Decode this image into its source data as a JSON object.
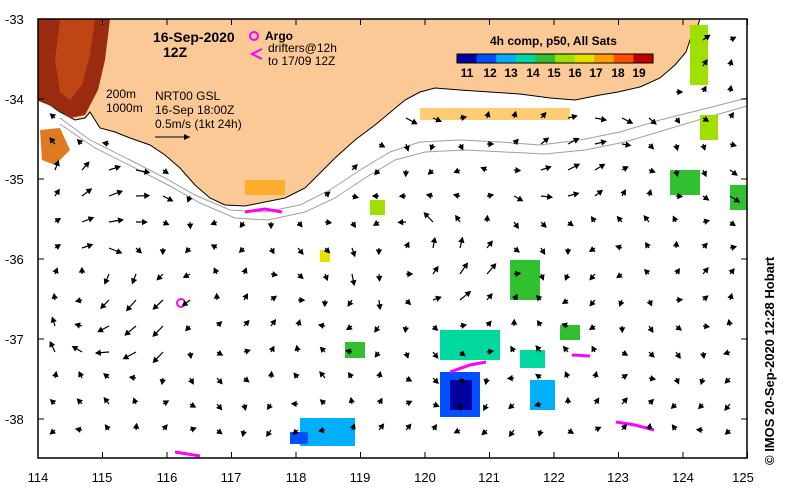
{
  "header": {
    "date": "16-Sep-2020",
    "time": "12Z"
  },
  "legend": {
    "argo_label": "Argo",
    "drifters_line1": "drifters@12h",
    "drifters_line2": "to 17/09 12Z",
    "argo_color": "#ff00ff",
    "drifter_color": "#ff00ff"
  },
  "colorbar": {
    "title": "4h comp, p50, All Sats",
    "labels": [
      "11",
      "12",
      "13",
      "14",
      "15",
      "16",
      "17",
      "18",
      "19"
    ],
    "colors": [
      "#0000a0",
      "#0050ff",
      "#00b0ff",
      "#00d8a0",
      "#30c030",
      "#a0e000",
      "#e8e000",
      "#ffa000",
      "#ff5000",
      "#c00000"
    ]
  },
  "isobaths": {
    "label_200": "200m",
    "label_1000": "1000m"
  },
  "analysis": {
    "line1": "NRT00 GSL",
    "line2": "16-Sep 18:00Z",
    "line3": "0.5m/s (1kt 24h)"
  },
  "axes": {
    "x_ticks": [
      "114",
      "115",
      "116",
      "117",
      "118",
      "119",
      "120",
      "121",
      "122",
      "123",
      "124",
      "125"
    ],
    "y_ticks": [
      "-33",
      "-34",
      "-35",
      "-36",
      "-37",
      "-38"
    ],
    "lon_range": [
      114,
      125
    ],
    "lat_range": [
      -38.5,
      -33
    ]
  },
  "credit": "© IMOS 20-Sep-2020 12:28 Hobart",
  "colors": {
    "land": "#fbc996",
    "coast": "#000000",
    "isobath": "#a0a0a0"
  }
}
